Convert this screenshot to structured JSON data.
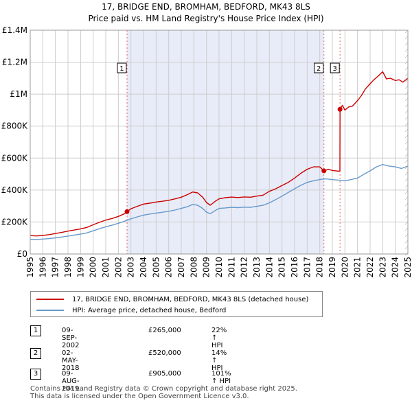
{
  "chart_data": {
    "type": "line",
    "title": "17, BRIDGE END, BROMHAM, BEDFORD, MK43 8LS",
    "subtitle": "Price paid vs. HM Land Registry's House Price Index (HPI)",
    "xlim": [
      1995,
      2025
    ],
    "ylim": [
      0,
      1400000
    ],
    "x_ticks": [
      1995,
      1996,
      1997,
      1998,
      1999,
      2000,
      2001,
      2002,
      2003,
      2004,
      2005,
      2006,
      2007,
      2008,
      2009,
      2010,
      2011,
      2012,
      2013,
      2014,
      2015,
      2016,
      2017,
      2018,
      2019,
      2020,
      2021,
      2022,
      2023,
      2024,
      2025
    ],
    "y_ticks": [
      {
        "value": 0,
        "label": "£0"
      },
      {
        "value": 200000,
        "label": "£200K"
      },
      {
        "value": 400000,
        "label": "£400K"
      },
      {
        "value": 600000,
        "label": "£600K"
      },
      {
        "value": 800000,
        "label": "£800K"
      },
      {
        "value": 1000000,
        "label": "£1M"
      },
      {
        "value": 1200000,
        "label": "£1.2M"
      },
      {
        "value": 1400000,
        "label": "£1.4M"
      }
    ],
    "series": [
      {
        "name": "17, BRIDGE END, BROMHAM, BEDFORD, MK43 8LS (detached house)",
        "color": "#cc0000",
        "x": [
          1995,
          1995.5,
          1996,
          1996.5,
          1997,
          1997.5,
          1998,
          1998.5,
          1999,
          1999.5,
          2000,
          2000.5,
          2001,
          2001.5,
          2002,
          2002.5,
          2002.69,
          2003,
          2003.5,
          2004,
          2004.5,
          2005,
          2005.5,
          2006,
          2006.5,
          2007,
          2007.5,
          2007.9,
          2008.3,
          2008.7,
          2009.0,
          2009.3,
          2009.7,
          2010,
          2010.5,
          2011,
          2011.5,
          2012,
          2012.5,
          2013,
          2013.5,
          2014,
          2014.5,
          2015,
          2015.5,
          2016,
          2016.5,
          2017,
          2017.5,
          2018.0,
          2018.33,
          2018.7,
          2019.0,
          2019.3,
          2019.5,
          2019.6,
          2019.61,
          2019.8,
          2020.0,
          2020.3,
          2020.6,
          2021.0,
          2021.3,
          2021.6,
          2022.0,
          2022.3,
          2022.6,
          2023.0,
          2023.3,
          2023.6,
          2024.0,
          2024.3,
          2024.6,
          2025.0
        ],
        "y": [
          115000,
          113000,
          116000,
          121000,
          128000,
          135000,
          143000,
          150000,
          157000,
          166000,
          183000,
          198000,
          212000,
          222000,
          235000,
          252000,
          265000,
          283000,
          298000,
          312000,
          318000,
          325000,
          330000,
          336000,
          345000,
          355000,
          372000,
          388000,
          382000,
          355000,
          322000,
          305000,
          330000,
          345000,
          352000,
          356000,
          353000,
          357000,
          355000,
          362000,
          368000,
          392000,
          408000,
          428000,
          448000,
          475000,
          505000,
          530000,
          545000,
          545000,
          520000,
          530000,
          522000,
          520000,
          518000,
          520000,
          905000,
          930000,
          900000,
          920000,
          925000,
          960000,
          990000,
          1030000,
          1065000,
          1090000,
          1110000,
          1140000,
          1095000,
          1100000,
          1085000,
          1090000,
          1075000,
          1100000
        ]
      },
      {
        "name": "HPI: Average price, detached house, Bedford",
        "color": "#6699cc",
        "x": [
          1995,
          1995.5,
          1996,
          1996.5,
          1997,
          1997.5,
          1998,
          1998.5,
          1999,
          1999.5,
          2000,
          2000.5,
          2001,
          2001.5,
          2002,
          2002.5,
          2003,
          2003.5,
          2004,
          2004.5,
          2005,
          2005.5,
          2006,
          2006.5,
          2007,
          2007.5,
          2007.9,
          2008.3,
          2008.7,
          2009.0,
          2009.3,
          2009.7,
          2010,
          2010.5,
          2011,
          2011.5,
          2012,
          2012.5,
          2013,
          2013.5,
          2014,
          2014.5,
          2015,
          2015.5,
          2016,
          2016.5,
          2017,
          2017.5,
          2018,
          2018.5,
          2019,
          2019.5,
          2020,
          2020.5,
          2021,
          2021.5,
          2022,
          2022.5,
          2023,
          2023.5,
          2024,
          2024.5,
          2025
        ],
        "y": [
          92000,
          91000,
          93000,
          96000,
          101000,
          106000,
          112000,
          118000,
          124000,
          132000,
          145000,
          158000,
          170000,
          180000,
          192000,
          205000,
          220000,
          232000,
          243000,
          250000,
          256000,
          261000,
          267000,
          275000,
          285000,
          296000,
          310000,
          305000,
          285000,
          262000,
          252000,
          272000,
          285000,
          288000,
          292000,
          290000,
          293000,
          292000,
          298000,
          305000,
          320000,
          340000,
          362000,
          385000,
          408000,
          430000,
          448000,
          458000,
          466000,
          470000,
          465000,
          462000,
          458000,
          466000,
          475000,
          498000,
          520000,
          545000,
          560000,
          550000,
          545000,
          535000,
          550000
        ]
      }
    ],
    "sales": [
      {
        "id": "1",
        "x": 2002.69,
        "y": 265000,
        "date": "09-SEP-2002",
        "price": "£265,000",
        "hpi": "22% ↑ HPI"
      },
      {
        "id": "2",
        "x": 2018.33,
        "y": 520000,
        "date": "02-MAY-2018",
        "price": "£520,000",
        "hpi": "14% ↑ HPI"
      },
      {
        "id": "3",
        "x": 2019.61,
        "y": 905000,
        "date": "09-AUG-2019",
        "price": "£905,000",
        "hpi": "101% ↑ HPI"
      }
    ],
    "shaded_span": [
      2002.69,
      2018.33
    ],
    "colors": {
      "price_line": "#cc0000",
      "hpi_line": "#6699cc",
      "shade": "#e8ecf8",
      "grid": "#cccccc",
      "vline": "#e06060"
    }
  },
  "legend": {
    "price_label": "17, BRIDGE END, BROMHAM, BEDFORD, MK43 8LS (detached house)",
    "hpi_label": "HPI: Average price, detached house, Bedford"
  },
  "footer": {
    "line1": "Contains HM Land Registry data © Crown copyright and database right 2025.",
    "line2": "This data is licensed under the Open Government Licence v3.0."
  }
}
